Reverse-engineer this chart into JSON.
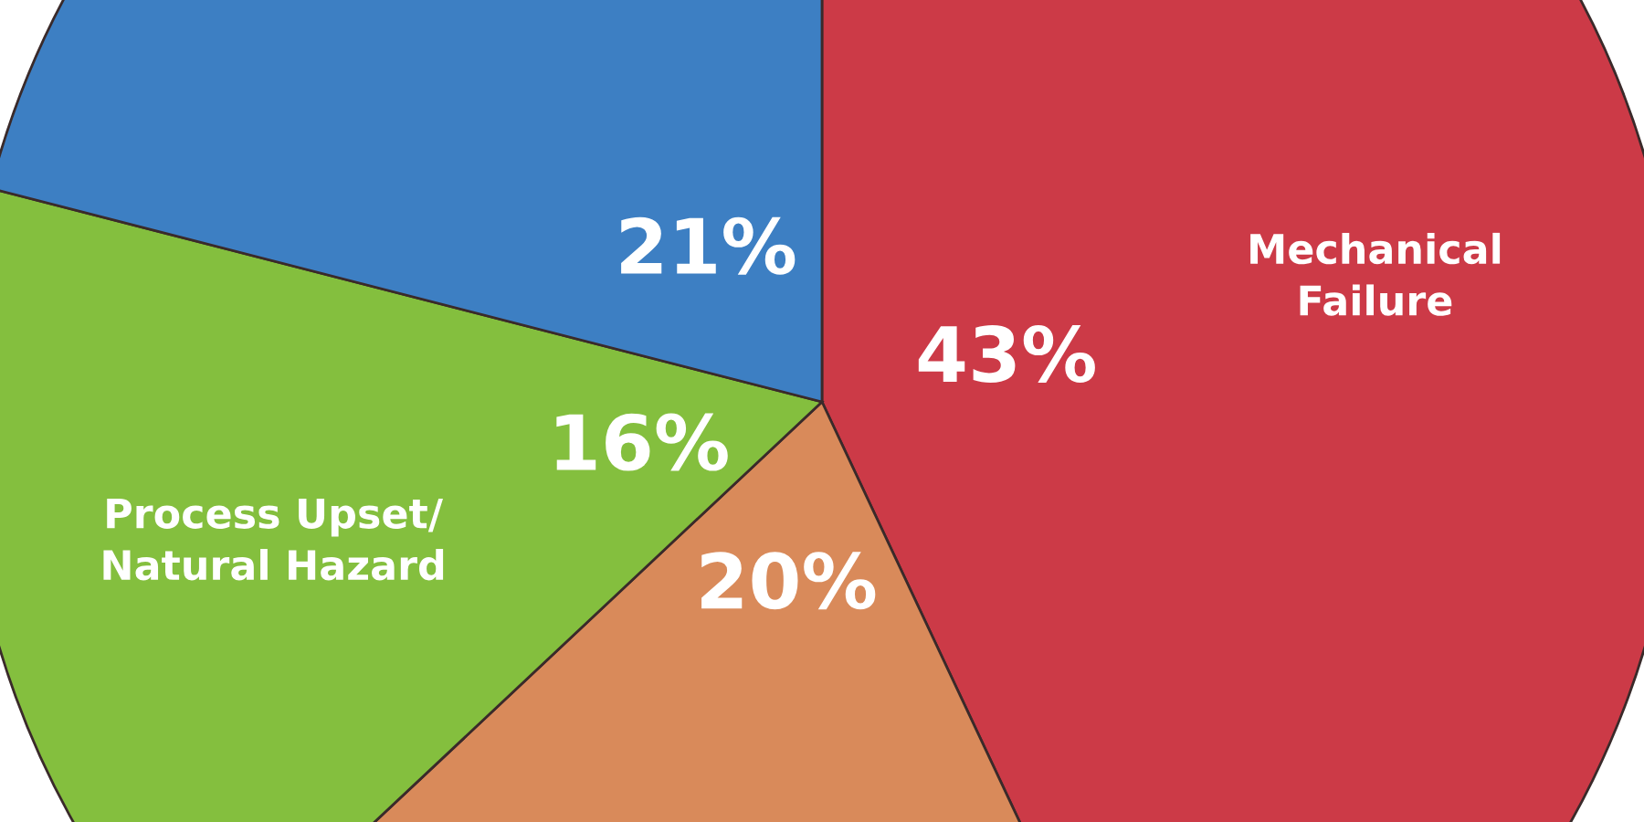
{
  "chart_data": {
    "type": "pie",
    "categories": [
      "Mechanical\nFailure",
      null,
      "Process Upset/\nNatural Hazard",
      null
    ],
    "values": [
      43,
      20,
      16,
      21
    ],
    "colors": [
      "#cc3a47",
      "#d98a5a",
      "#84bf3e",
      "#3d7fc3"
    ],
    "value_labels": [
      "43%",
      "20%",
      "16%",
      "21%"
    ]
  }
}
